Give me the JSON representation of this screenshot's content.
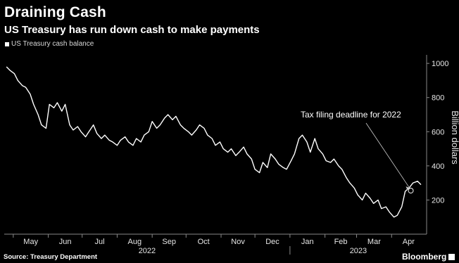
{
  "header": {
    "title": "Draining Cash",
    "subtitle": "US Treasury has run down cash to make payments"
  },
  "footer": {
    "source": "Source: Treasury Department",
    "brand": "Bloomberg"
  },
  "colors": {
    "background": "#000000",
    "line": "#ffffff",
    "axis": "#888888",
    "text": "#ffffff"
  },
  "chart_data": {
    "type": "line",
    "title": "Draining Cash",
    "subtitle": "US Treasury has run down cash to make payments",
    "ylabel": "Billion dollars",
    "ylim": [
      0,
      1050
    ],
    "yticks": [
      200,
      400,
      600,
      800,
      1000
    ],
    "grid": false,
    "legend": {
      "placement": "top-left",
      "entries": [
        "US Treasury cash balance"
      ]
    },
    "month_ticks": [
      "May",
      "Jun",
      "Jul",
      "Aug",
      "Sep",
      "Oct",
      "Nov",
      "Dec",
      "Jan",
      "Feb",
      "Mar",
      "Apr"
    ],
    "year_labels": [
      "2022",
      "2023"
    ],
    "series": [
      {
        "name": "US Treasury cash balance",
        "x": [
          "2022-04-25",
          "2022-04-28",
          "2022-05-02",
          "2022-05-05",
          "2022-05-09",
          "2022-05-12",
          "2022-05-16",
          "2022-05-19",
          "2022-05-23",
          "2022-05-26",
          "2022-05-30",
          "2022-06-02",
          "2022-06-06",
          "2022-06-09",
          "2022-06-13",
          "2022-06-16",
          "2022-06-20",
          "2022-06-23",
          "2022-06-27",
          "2022-06-30",
          "2022-07-04",
          "2022-07-07",
          "2022-07-11",
          "2022-07-14",
          "2022-07-18",
          "2022-07-21",
          "2022-07-25",
          "2022-07-28",
          "2022-08-01",
          "2022-08-04",
          "2022-08-08",
          "2022-08-11",
          "2022-08-15",
          "2022-08-18",
          "2022-08-22",
          "2022-08-25",
          "2022-08-29",
          "2022-09-01",
          "2022-09-05",
          "2022-09-08",
          "2022-09-12",
          "2022-09-15",
          "2022-09-19",
          "2022-09-22",
          "2022-09-26",
          "2022-09-29",
          "2022-10-03",
          "2022-10-06",
          "2022-10-10",
          "2022-10-13",
          "2022-10-17",
          "2022-10-20",
          "2022-10-24",
          "2022-10-27",
          "2022-10-31",
          "2022-11-03",
          "2022-11-07",
          "2022-11-10",
          "2022-11-14",
          "2022-11-17",
          "2022-11-21",
          "2022-11-24",
          "2022-11-28",
          "2022-12-01",
          "2022-12-05",
          "2022-12-08",
          "2022-12-12",
          "2022-12-15",
          "2022-12-19",
          "2022-12-22",
          "2022-12-26",
          "2022-12-29",
          "2023-01-02",
          "2023-01-05",
          "2023-01-09",
          "2023-01-12",
          "2023-01-16",
          "2023-01-19",
          "2023-01-23",
          "2023-01-26",
          "2023-01-30",
          "2023-02-02",
          "2023-02-06",
          "2023-02-09",
          "2023-02-13",
          "2023-02-16",
          "2023-02-20",
          "2023-02-23",
          "2023-02-27",
          "2023-03-02",
          "2023-03-06",
          "2023-03-09",
          "2023-03-13",
          "2023-03-16",
          "2023-03-20",
          "2023-03-23",
          "2023-03-27",
          "2023-03-30",
          "2023-04-03",
          "2023-04-06",
          "2023-04-10",
          "2023-04-13",
          "2023-04-17",
          "2023-04-20",
          "2023-04-24",
          "2023-04-27"
        ],
        "values": [
          980,
          960,
          940,
          900,
          870,
          860,
          820,
          760,
          700,
          640,
          620,
          760,
          740,
          770,
          720,
          760,
          640,
          610,
          630,
          600,
          570,
          600,
          640,
          590,
          560,
          580,
          550,
          540,
          520,
          550,
          570,
          540,
          520,
          560,
          540,
          580,
          600,
          660,
          620,
          640,
          680,
          700,
          670,
          690,
          640,
          620,
          600,
          580,
          610,
          640,
          620,
          580,
          560,
          520,
          540,
          500,
          480,
          500,
          460,
          480,
          510,
          470,
          440,
          380,
          360,
          420,
          390,
          470,
          440,
          410,
          390,
          380,
          430,
          470,
          560,
          580,
          540,
          480,
          560,
          500,
          470,
          430,
          420,
          440,
          400,
          380,
          330,
          300,
          270,
          230,
          200,
          240,
          210,
          180,
          200,
          150,
          160,
          130,
          100,
          110,
          160,
          250,
          275,
          300,
          310,
          290
        ]
      }
    ],
    "annotations": [
      {
        "text": "Tax filing deadline for 2022",
        "x": "2023-04-18",
        "y": 255
      }
    ]
  }
}
